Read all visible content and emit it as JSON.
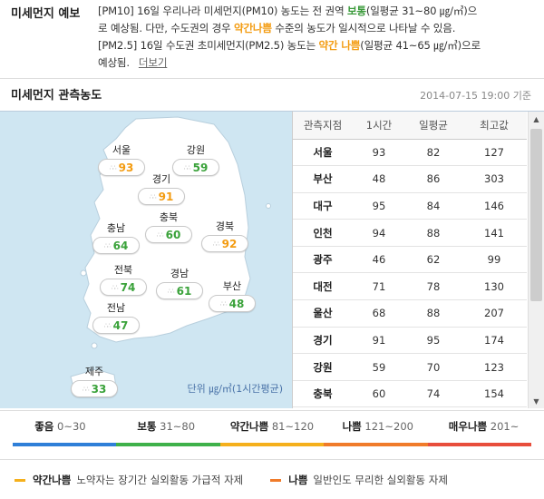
{
  "forecast": {
    "title": "미세먼지 예보",
    "line1_a": "[PM10] 16일 우리나라 미세먼지(PM10) 농도는 전 권역 ",
    "line1_good": "보통",
    "line1_b": "(일평균 31~80 ㎍/㎥)으",
    "line2_a": "로 예상됨. 다만, 수도권의 경우 ",
    "line2_mod": "약간나쁨",
    "line2_b": " 수준의 농도가 일시적으로 나타날 수 있음.",
    "line3_a": "[PM2.5] 16일 수도권 초미세먼지(PM2.5) 농도는 ",
    "line3_mod": "약간 나쁨",
    "line3_b": "(일평균 41~65 ㎍/㎥)으로",
    "line4": "예상됨.",
    "more_label": "더보기"
  },
  "section": {
    "title": "미세먼지 관측농도",
    "timestamp": "2014-07-15 19:00 기준"
  },
  "map": {
    "unit": "단위 ㎍/㎥(1시간평균)",
    "icon": "haze-icon",
    "regions": [
      {
        "name": "서울",
        "value": "93",
        "level": "moderate"
      },
      {
        "name": "강원",
        "value": "59",
        "level": "good"
      },
      {
        "name": "경기",
        "value": "91",
        "level": "moderate"
      },
      {
        "name": "충북",
        "value": "60",
        "level": "good"
      },
      {
        "name": "충남",
        "value": "64",
        "level": "good"
      },
      {
        "name": "경북",
        "value": "92",
        "level": "moderate"
      },
      {
        "name": "전북",
        "value": "74",
        "level": "good"
      },
      {
        "name": "경남",
        "value": "61",
        "level": "good"
      },
      {
        "name": "부산",
        "value": "48",
        "level": "good"
      },
      {
        "name": "전남",
        "value": "47",
        "level": "good"
      },
      {
        "name": "제주",
        "value": "33",
        "level": "good"
      }
    ]
  },
  "table": {
    "headers": [
      "관측지점",
      "1시간",
      "일평균",
      "최고값"
    ],
    "rows": [
      [
        "서울",
        "93",
        "82",
        "127"
      ],
      [
        "부산",
        "48",
        "86",
        "303"
      ],
      [
        "대구",
        "95",
        "84",
        "146"
      ],
      [
        "인천",
        "94",
        "88",
        "141"
      ],
      [
        "광주",
        "46",
        "62",
        "99"
      ],
      [
        "대전",
        "71",
        "78",
        "130"
      ],
      [
        "울산",
        "68",
        "88",
        "207"
      ],
      [
        "경기",
        "91",
        "95",
        "174"
      ],
      [
        "강원",
        "59",
        "70",
        "123"
      ],
      [
        "충북",
        "60",
        "74",
        "154"
      ]
    ]
  },
  "scale": [
    {
      "name": "좋음",
      "range": "0~30",
      "color": "#2f7fd8"
    },
    {
      "name": "보통",
      "range": "31~80",
      "color": "#3fb14a"
    },
    {
      "name": "약간나쁨",
      "range": "81~120",
      "color": "#f5b01c"
    },
    {
      "name": "나쁨",
      "range": "121~200",
      "color": "#f07b2a"
    },
    {
      "name": "매우나쁨",
      "range": "201~",
      "color": "#e84e3c"
    }
  ],
  "notes": [
    {
      "name": "약간나쁨",
      "text": "노약자는 장기간 실외활동 가급적 자제",
      "color": "#f5b01c"
    },
    {
      "name": "나쁨",
      "text": "일반인도 무리한 실외활동 자제",
      "color": "#f07b2a"
    }
  ],
  "colors": {
    "good": "#3aa23a",
    "moderate": "#f39c12",
    "map_sea": "#cfe6f2",
    "map_land": "#ffffff"
  }
}
